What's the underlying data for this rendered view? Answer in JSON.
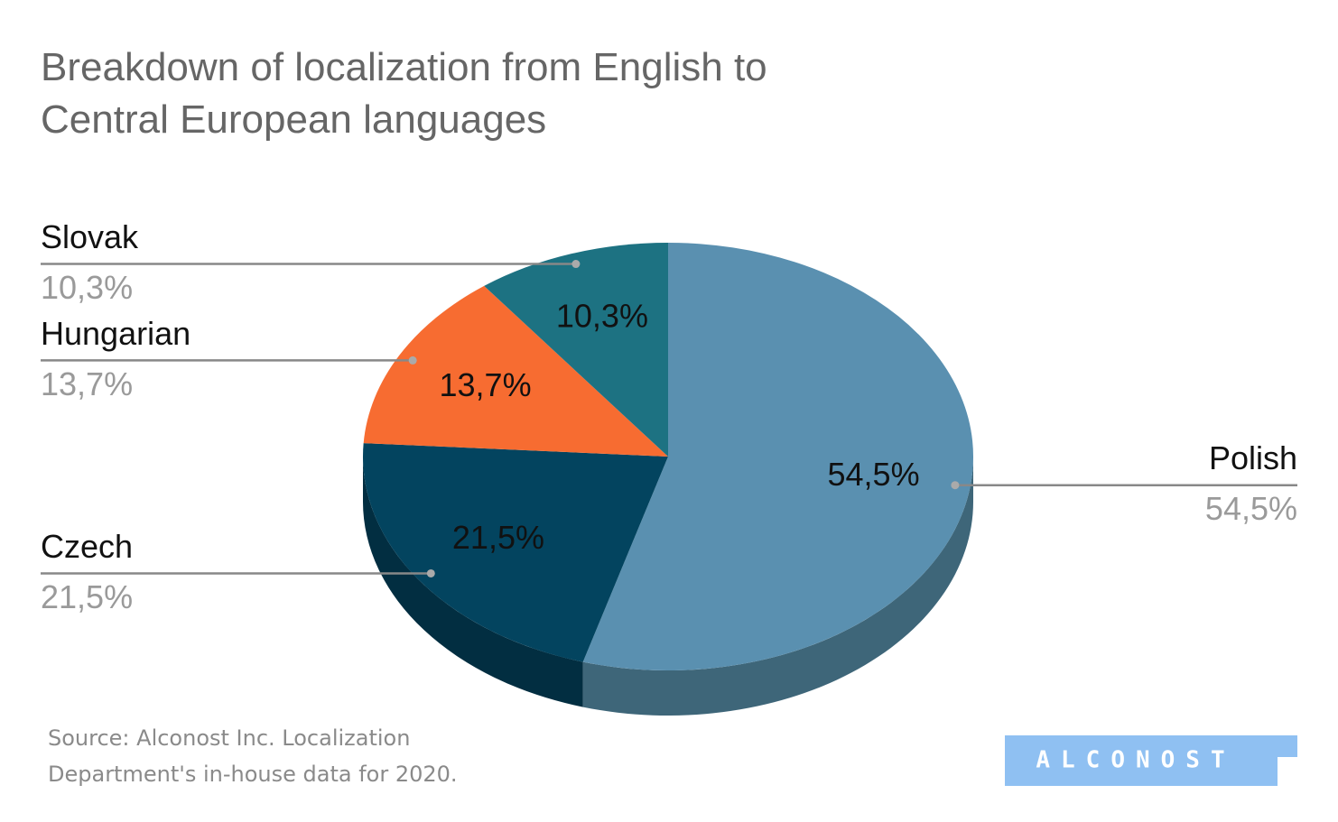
{
  "chart_data": {
    "type": "pie3d",
    "title": "Breakdown of localization from English to Central European languages",
    "categories": [
      "Polish",
      "Czech",
      "Hungarian",
      "Slovak"
    ],
    "values": [
      54.5,
      21.5,
      13.7,
      10.3
    ],
    "value_labels": [
      "54,5%",
      "21,5%",
      "13,7%",
      "10,3%"
    ],
    "colors": [
      "#5a90b0",
      "#03445f",
      "#f76c31",
      "#1d7282"
    ],
    "side_colors": [
      "#3e6679",
      "#022e41",
      "#b04c22",
      "#14505c"
    ]
  },
  "footer": {
    "source": "Source: Alconost Inc. Localization Department's in-house data for 2020.",
    "logo": "ALCONOST"
  }
}
